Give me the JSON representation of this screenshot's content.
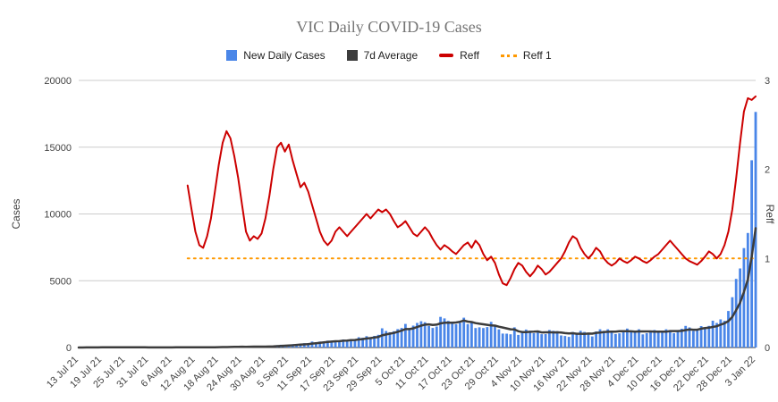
{
  "title": "VIC Daily COVID-19 Cases",
  "colors": {
    "grid": "#cccccc",
    "baseline": "#333333",
    "axis_text": "#444444",
    "title": "#757575"
  },
  "legend": [
    {
      "label": "New Daily Cases",
      "type": "square",
      "color": "#4a86e8"
    },
    {
      "label": "7d Average",
      "type": "square",
      "color": "#3c3c3c"
    },
    {
      "label": "Reff",
      "type": "line",
      "color": "#cc0000"
    },
    {
      "label": "Reff 1",
      "type": "dotted",
      "color": "#ff9900"
    }
  ],
  "chart_data": {
    "type": "combo",
    "title": "VIC Daily COVID-19 Cases",
    "start_date": "13 Jul 21",
    "end_date": "3 Jan 22",
    "x_tick_interval_days": 6,
    "x_tick_labels": [
      "13 Jul 21",
      "19 Jul 21",
      "25 Jul 21",
      "31 Jul 21",
      "6 Aug 21",
      "12 Aug 21",
      "18 Aug 21",
      "24 Aug 21",
      "30 Aug 21",
      "5 Sep 21",
      "11 Sep 21",
      "17 Sep 21",
      "23 Sep 21",
      "29 Sep 21",
      "5 Oct 21",
      "11 Oct 21",
      "17 Oct 21",
      "23 Oct 21",
      "29 Oct 21",
      "4 Nov 21",
      "10 Nov 21",
      "16 Nov 21",
      "22 Nov 21",
      "28 Nov 21",
      "4 Dec 21",
      "10 Dec 21",
      "16 Dec 21",
      "22 Dec 21",
      "28 Dec 21",
      "3 Jan 22"
    ],
    "left_axis": {
      "title": "Cases",
      "range": [
        0,
        20000
      ],
      "ticks": [
        0,
        5000,
        10000,
        15000,
        20000
      ],
      "grid": true
    },
    "right_axis": {
      "title": "Reff",
      "range": [
        0,
        3
      ],
      "ticks": [
        0,
        1,
        2,
        3
      ]
    },
    "legend_position": "top-center",
    "series": [
      {
        "name": "New Daily Cases",
        "type": "bar",
        "axis": "left",
        "color": "#4a86e8",
        "values": [
          2,
          3,
          12,
          18,
          9,
          12,
          16,
          26,
          22,
          14,
          12,
          26,
          11,
          10,
          10,
          9,
          4,
          2,
          2,
          4,
          11,
          8,
          8,
          6,
          29,
          11,
          11,
          25,
          20,
          21,
          24,
          18,
          25,
          22,
          24,
          24,
          57,
          45,
          55,
          61,
          65,
          71,
          50,
          45,
          80,
          79,
          64,
          92,
          73,
          76,
          120,
          176,
          208,
          183,
          183,
          246,
          221,
          290,
          324,
          334,
          450,
          392,
          445,
          423,
          514,
          510,
          535,
          507,
          603,
          567,
          628,
          603,
          766,
          733,
          847,
          779,
          867,
          950,
          1438,
          1235,
          1143,
          1220,
          1377,
          1466,
          1763,
          1420,
          1638,
          1838,
          1965,
          1890,
          1612,
          1466,
          1571,
          2297,
          2179,
          1993,
          1838,
          1749,
          1841,
          2232,
          1750,
          1935,
          1461,
          1510,
          1461,
          1534,
          1923,
          1656,
          1355,
          1043,
          1036,
          989,
          1510,
          941,
          1247,
          1343,
          1173,
          1069,
          1126,
          994,
          1003,
          1313,
          1254,
          1221,
          905,
          860,
          797,
          1164,
          996,
          1254,
          1166,
          1061,
          827,
          1196,
          1362,
          1254,
          1362,
          1263,
          1007,
          1061,
          1196,
          1419,
          1188,
          1206,
          1365,
          980,
          1073,
          1185,
          1312,
          1206,
          1188,
          1362,
          1290,
          1073,
          1189,
          1405,
          1622,
          1503,
          1240,
          1302,
          1608,
          1503,
          1622,
          2005,
          1841,
          2108,
          1999,
          2738,
          3767,
          5137,
          5919,
          7442,
          8577,
          14020,
          17636
        ]
      },
      {
        "name": "7d Average",
        "type": "line",
        "axis": "left",
        "color": "#3c3c3c",
        "derived_from": "7-day trailing mean of New Daily Cases"
      },
      {
        "name": "Reff",
        "type": "line",
        "axis": "right",
        "color": "#cc0000",
        "points": [
          [
            28,
            1.82
          ],
          [
            29,
            1.55
          ],
          [
            30,
            1.3
          ],
          [
            31,
            1.15
          ],
          [
            32,
            1.12
          ],
          [
            33,
            1.25
          ],
          [
            34,
            1.45
          ],
          [
            35,
            1.75
          ],
          [
            36,
            2.05
          ],
          [
            37,
            2.3
          ],
          [
            38,
            2.43
          ],
          [
            39,
            2.35
          ],
          [
            40,
            2.15
          ],
          [
            41,
            1.9
          ],
          [
            42,
            1.6
          ],
          [
            43,
            1.3
          ],
          [
            44,
            1.2
          ],
          [
            45,
            1.25
          ],
          [
            46,
            1.22
          ],
          [
            47,
            1.28
          ],
          [
            48,
            1.45
          ],
          [
            49,
            1.7
          ],
          [
            50,
            2.0
          ],
          [
            51,
            2.25
          ],
          [
            52,
            2.3
          ],
          [
            53,
            2.2
          ],
          [
            54,
            2.28
          ],
          [
            55,
            2.1
          ],
          [
            56,
            1.95
          ],
          [
            57,
            1.8
          ],
          [
            58,
            1.85
          ],
          [
            59,
            1.75
          ],
          [
            60,
            1.6
          ],
          [
            61,
            1.45
          ],
          [
            62,
            1.3
          ],
          [
            63,
            1.2
          ],
          [
            64,
            1.15
          ],
          [
            65,
            1.2
          ],
          [
            66,
            1.3
          ],
          [
            67,
            1.35
          ],
          [
            68,
            1.3
          ],
          [
            69,
            1.25
          ],
          [
            70,
            1.3
          ],
          [
            71,
            1.35
          ],
          [
            72,
            1.4
          ],
          [
            73,
            1.45
          ],
          [
            74,
            1.5
          ],
          [
            75,
            1.45
          ],
          [
            76,
            1.5
          ],
          [
            77,
            1.55
          ],
          [
            78,
            1.52
          ],
          [
            79,
            1.55
          ],
          [
            80,
            1.5
          ],
          [
            81,
            1.42
          ],
          [
            82,
            1.35
          ],
          [
            83,
            1.38
          ],
          [
            84,
            1.42
          ],
          [
            85,
            1.35
          ],
          [
            86,
            1.28
          ],
          [
            87,
            1.25
          ],
          [
            88,
            1.3
          ],
          [
            89,
            1.35
          ],
          [
            90,
            1.3
          ],
          [
            91,
            1.22
          ],
          [
            92,
            1.15
          ],
          [
            93,
            1.1
          ],
          [
            94,
            1.15
          ],
          [
            95,
            1.12
          ],
          [
            96,
            1.08
          ],
          [
            97,
            1.05
          ],
          [
            98,
            1.1
          ],
          [
            99,
            1.15
          ],
          [
            100,
            1.18
          ],
          [
            101,
            1.12
          ],
          [
            102,
            1.2
          ],
          [
            103,
            1.15
          ],
          [
            104,
            1.05
          ],
          [
            105,
            0.98
          ],
          [
            106,
            1.02
          ],
          [
            107,
            0.95
          ],
          [
            108,
            0.82
          ],
          [
            109,
            0.72
          ],
          [
            110,
            0.7
          ],
          [
            111,
            0.78
          ],
          [
            112,
            0.88
          ],
          [
            113,
            0.95
          ],
          [
            114,
            0.92
          ],
          [
            115,
            0.85
          ],
          [
            116,
            0.8
          ],
          [
            117,
            0.85
          ],
          [
            118,
            0.92
          ],
          [
            119,
            0.88
          ],
          [
            120,
            0.82
          ],
          [
            121,
            0.85
          ],
          [
            122,
            0.9
          ],
          [
            123,
            0.95
          ],
          [
            124,
            1.0
          ],
          [
            125,
            1.08
          ],
          [
            126,
            1.18
          ],
          [
            127,
            1.25
          ],
          [
            128,
            1.22
          ],
          [
            129,
            1.12
          ],
          [
            130,
            1.05
          ],
          [
            131,
            1.0
          ],
          [
            132,
            1.05
          ],
          [
            133,
            1.12
          ],
          [
            134,
            1.08
          ],
          [
            135,
            1.0
          ],
          [
            136,
            0.95
          ],
          [
            137,
            0.92
          ],
          [
            138,
            0.95
          ],
          [
            139,
            1.0
          ],
          [
            140,
            0.97
          ],
          [
            141,
            0.95
          ],
          [
            142,
            0.98
          ],
          [
            143,
            1.02
          ],
          [
            144,
            1.0
          ],
          [
            145,
            0.97
          ],
          [
            146,
            0.95
          ],
          [
            147,
            0.98
          ],
          [
            148,
            1.02
          ],
          [
            149,
            1.05
          ],
          [
            150,
            1.1
          ],
          [
            151,
            1.15
          ],
          [
            152,
            1.2
          ],
          [
            153,
            1.15
          ],
          [
            154,
            1.1
          ],
          [
            155,
            1.05
          ],
          [
            156,
            1.0
          ],
          [
            157,
            0.97
          ],
          [
            158,
            0.95
          ],
          [
            159,
            0.93
          ],
          [
            160,
            0.97
          ],
          [
            161,
            1.02
          ],
          [
            162,
            1.08
          ],
          [
            163,
            1.05
          ],
          [
            164,
            1.0
          ],
          [
            165,
            1.05
          ],
          [
            166,
            1.15
          ],
          [
            167,
            1.3
          ],
          [
            168,
            1.55
          ],
          [
            169,
            1.9
          ],
          [
            170,
            2.3
          ],
          [
            171,
            2.65
          ],
          [
            172,
            2.8
          ],
          [
            173,
            2.78
          ],
          [
            174,
            2.82
          ]
        ]
      },
      {
        "name": "Reff 1",
        "type": "dotted-line",
        "axis": "right",
        "color": "#ff9900",
        "value": 1,
        "start_day": 28,
        "end_day": 174
      }
    ]
  }
}
